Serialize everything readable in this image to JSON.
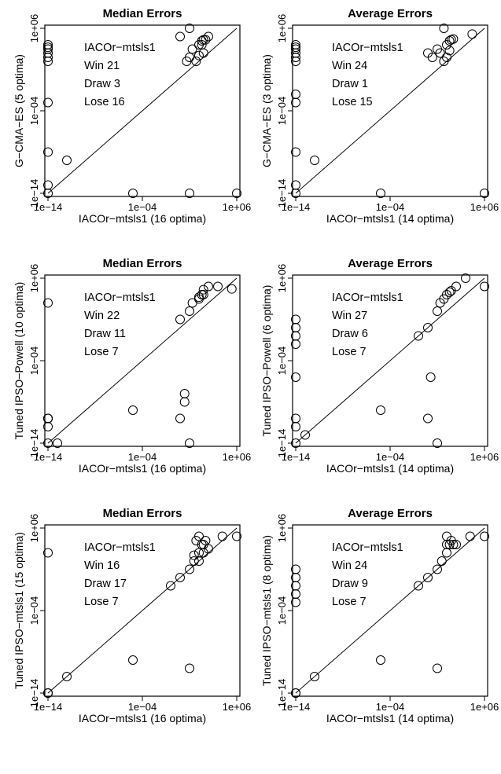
{
  "chart_data": [
    {
      "type": "scatter",
      "title": "Median Errors",
      "xlabel": "IACOr−mtsls1 (16 optima)",
      "ylabel": "G−CMA−ES (5 optima)",
      "scale": "log10",
      "xlim": [
        1e-14,
        1000000.0
      ],
      "ylim": [
        1e-14,
        1000000.0
      ],
      "ticks": [
        "1e−14",
        "1e−04",
        "1e+06"
      ],
      "annotation": [
        "IACOr−mtsls1",
        "Win 21",
        "Draw 3",
        "Lose 16"
      ],
      "diagonal": true,
      "points": [
        {
          "x": 1e-14,
          "y": 1e-14
        },
        {
          "x": 1e-14,
          "y": 1e-13
        },
        {
          "x": 1e-14,
          "y": 1e-09
        },
        {
          "x": 1e-14,
          "y": 0.001
        },
        {
          "x": 1e-14,
          "y": 100.0
        },
        {
          "x": 1e-14,
          "y": 300.0
        },
        {
          "x": 1e-14,
          "y": 1000.0
        },
        {
          "x": 1e-14,
          "y": 3000.0
        },
        {
          "x": 1e-14,
          "y": 10000.0
        },
        {
          "x": 1e-14,
          "y": 5000.0
        },
        {
          "x": 1e-12,
          "y": 1e-10
        },
        {
          "x": 1e-05,
          "y": 1e-14
        },
        {
          "x": 10.0,
          "y": 1e-14
        },
        {
          "x": 1000000.0,
          "y": 1e-14
        },
        {
          "x": 1.0,
          "y": 100000.0
        },
        {
          "x": 10.0,
          "y": 1000000.0
        },
        {
          "x": 5.0,
          "y": 100.0
        },
        {
          "x": 10.0,
          "y": 300.0
        },
        {
          "x": 50.0,
          "y": 100.0
        },
        {
          "x": 100.0,
          "y": 500.0
        },
        {
          "x": 20.0,
          "y": 3000.0
        },
        {
          "x": 100.0,
          "y": 10000.0
        },
        {
          "x": 200.0,
          "y": 30000.0
        },
        {
          "x": 300.0,
          "y": 40000.0
        },
        {
          "x": 200.0,
          "y": 10000.0
        },
        {
          "x": 500.0,
          "y": 40000.0
        },
        {
          "x": 1000.0,
          "y": 100000.0
        },
        {
          "x": 300.0,
          "y": 1000.0
        }
      ]
    },
    {
      "type": "scatter",
      "title": "Average Errors",
      "xlabel": "IACOr−mtsls1 (14 optima)",
      "ylabel": "G−CMA−ES (3 optima)",
      "scale": "log10",
      "xlim": [
        1e-14,
        1000000.0
      ],
      "ylim": [
        1e-14,
        1000000.0
      ],
      "ticks": [
        "1e−14",
        "1e−04",
        "1e+06"
      ],
      "annotation": [
        "IACOr−mtsls1",
        "Win 24",
        "Draw 1",
        "Lose 15"
      ],
      "diagonal": true,
      "points": [
        {
          "x": 1e-14,
          "y": 1e-14
        },
        {
          "x": 1e-14,
          "y": 1e-13
        },
        {
          "x": 1e-14,
          "y": 1e-09
        },
        {
          "x": 1e-14,
          "y": 0.001
        },
        {
          "x": 1e-14,
          "y": 0.01
        },
        {
          "x": 1e-14,
          "y": 100.0
        },
        {
          "x": 1e-14,
          "y": 300.0
        },
        {
          "x": 1e-14,
          "y": 1000.0
        },
        {
          "x": 1e-14,
          "y": 3000.0
        },
        {
          "x": 1e-14,
          "y": 10000.0
        },
        {
          "x": 1e-14,
          "y": 5000.0
        },
        {
          "x": 1e-12,
          "y": 1e-10
        },
        {
          "x": 1e-05,
          "y": 1e-14
        },
        {
          "x": 1000000.0,
          "y": 1e-14
        },
        {
          "x": 1.0,
          "y": 1000.0
        },
        {
          "x": 3.0,
          "y": 300.0
        },
        {
          "x": 10.0,
          "y": 3000.0
        },
        {
          "x": 20.0,
          "y": 1000.0
        },
        {
          "x": 50.0,
          "y": 100.0
        },
        {
          "x": 100.0,
          "y": 300.0
        },
        {
          "x": 100.0,
          "y": 10000.0
        },
        {
          "x": 200.0,
          "y": 30000.0
        },
        {
          "x": 300.0,
          "y": 40000.0
        },
        {
          "x": 50.0,
          "y": 1000000.0
        },
        {
          "x": 200.0,
          "y": 2000.0
        },
        {
          "x": 500.0,
          "y": 50000.0
        },
        {
          "x": 50000.0,
          "y": 200000.0
        }
      ]
    },
    {
      "type": "scatter",
      "title": "Median Errors",
      "xlabel": "IACOr−mtsls1 (16 optima)",
      "ylabel": "Tuned IPSO−Powell (10 optima)",
      "scale": "log10",
      "xlim": [
        1e-14,
        1000000.0
      ],
      "ylim": [
        1e-14,
        1000000.0
      ],
      "ticks": [
        "1e−14",
        "1e−04",
        "1e+06"
      ],
      "annotation": [
        "IACOr−mtsls1",
        "Win 22",
        "Draw 11",
        "Lose 7"
      ],
      "diagonal": true,
      "points": [
        {
          "x": 1e-14,
          "y": 1e-14
        },
        {
          "x": 1e-14,
          "y": 1e-11
        },
        {
          "x": 1e-14,
          "y": 1e-12
        },
        {
          "x": 1e-14,
          "y": 1e-11
        },
        {
          "x": 1e-14,
          "y": 1e-11
        },
        {
          "x": 1e-14,
          "y": 1000.0
        },
        {
          "x": 1e-13,
          "y": 1e-14
        },
        {
          "x": 1e-05,
          "y": 1e-10
        },
        {
          "x": 1.0,
          "y": 1e-11
        },
        {
          "x": 3.0,
          "y": 1e-08
        },
        {
          "x": 3.0,
          "y": 1e-09
        },
        {
          "x": 10.0,
          "y": 1e-14
        },
        {
          "x": 1.0,
          "y": 10.0
        },
        {
          "x": 10.0,
          "y": 100.0
        },
        {
          "x": 20.0,
          "y": 1000.0
        },
        {
          "x": 100.0,
          "y": 3000.0
        },
        {
          "x": 200.0,
          "y": 10000.0
        },
        {
          "x": 300.0,
          "y": 10000.0
        },
        {
          "x": 100.0,
          "y": 5000.0
        },
        {
          "x": 300.0,
          "y": 40000.0
        },
        {
          "x": 1000.0,
          "y": 100000.0
        },
        {
          "x": 300000.0,
          "y": 50000.0
        },
        {
          "x": 10000.0,
          "y": 100000.0
        }
      ]
    },
    {
      "type": "scatter",
      "title": "Average Errors",
      "xlabel": "IACOr−mtsls1 (14 optima)",
      "ylabel": "Tuned IPSO−Powell (6 optima)",
      "scale": "log10",
      "xlim": [
        1e-14,
        1000000.0
      ],
      "ylim": [
        1e-14,
        1000000.0
      ],
      "ticks": [
        "1e−14",
        "1e−04",
        "1e+06"
      ],
      "annotation": [
        "IACOr−mtsls1",
        "Win 27",
        "Draw 6",
        "Lose 7"
      ],
      "diagonal": true,
      "points": [
        {
          "x": 1e-14,
          "y": 1e-14
        },
        {
          "x": 1e-14,
          "y": 1e-12
        },
        {
          "x": 1e-14,
          "y": 1e-11
        },
        {
          "x": 1e-14,
          "y": 1e-06
        },
        {
          "x": 1e-14,
          "y": 0.01
        },
        {
          "x": 1e-14,
          "y": 1.0
        },
        {
          "x": 1e-14,
          "y": 0.1
        },
        {
          "x": 1e-14,
          "y": 10.0
        },
        {
          "x": 1e-13,
          "y": 1e-13
        },
        {
          "x": 1e-05,
          "y": 1e-10
        },
        {
          "x": 1.0,
          "y": 1e-11
        },
        {
          "x": 2.0,
          "y": 1e-06
        },
        {
          "x": 10.0,
          "y": 1e-14
        },
        {
          "x": 0.1,
          "y": 0.1
        },
        {
          "x": 1.0,
          "y": 1.0
        },
        {
          "x": 10.0,
          "y": 100.0
        },
        {
          "x": 20.0,
          "y": 1000.0
        },
        {
          "x": 50.0,
          "y": 3000.0
        },
        {
          "x": 100.0,
          "y": 10000.0
        },
        {
          "x": 200.0,
          "y": 20000.0
        },
        {
          "x": 300.0,
          "y": 30000.0
        },
        {
          "x": 1000.0,
          "y": 100000.0
        },
        {
          "x": 1000000.0,
          "y": 100000.0
        },
        {
          "x": 10000.0,
          "y": 1000000.0
        }
      ]
    },
    {
      "type": "scatter",
      "title": "Median Errors",
      "xlabel": "IACOr−mtsls1 (16 optima)",
      "ylabel": "Tuned IPSO−mtsls1 (15 optima)",
      "scale": "log10",
      "xlim": [
        1e-14,
        1000000.0
      ],
      "ylim": [
        1e-14,
        1000000.0
      ],
      "ticks": [
        "1e−14",
        "1e−04",
        "1e+06"
      ],
      "annotation": [
        "IACOr−mtsls1",
        "Win 16",
        "Draw 17",
        "Lose 7"
      ],
      "diagonal": true,
      "points": [
        {
          "x": 1e-14,
          "y": 1e-14
        },
        {
          "x": 1e-14,
          "y": 1e-14
        },
        {
          "x": 1e-14,
          "y": 1e-14
        },
        {
          "x": 1e-14,
          "y": 1000.0
        },
        {
          "x": 1e-12,
          "y": 1e-12
        },
        {
          "x": 1e-05,
          "y": 1e-10
        },
        {
          "x": 10.0,
          "y": 1e-11
        },
        {
          "x": 0.1,
          "y": 0.1
        },
        {
          "x": 1.0,
          "y": 1.0
        },
        {
          "x": 10.0,
          "y": 10.0
        },
        {
          "x": 30.0,
          "y": 100.0
        },
        {
          "x": 100.0,
          "y": 100.0
        },
        {
          "x": 100.0,
          "y": 1000.0
        },
        {
          "x": 200.0,
          "y": 10000.0
        },
        {
          "x": 300.0,
          "y": 10000.0
        },
        {
          "x": 300.0,
          "y": 1000.0
        },
        {
          "x": 500.0,
          "y": 30000.0
        },
        {
          "x": 1000.0,
          "y": 3000.0
        },
        {
          "x": 100.0,
          "y": 100000.0
        },
        {
          "x": 30000.0,
          "y": 100000.0
        },
        {
          "x": 1000000.0,
          "y": 100000.0
        },
        {
          "x": 50.0,
          "y": 30000.0
        },
        {
          "x": 30.0,
          "y": 500.0
        }
      ]
    },
    {
      "type": "scatter",
      "title": "Average Errors",
      "xlabel": "IACOr−mtsls1 (14 optima)",
      "ylabel": "Tuned IPSO−mtsls1 (8 optima)",
      "scale": "log10",
      "xlim": [
        1e-14,
        1000000.0
      ],
      "ylim": [
        1e-14,
        1000000.0
      ],
      "ticks": [
        "1e−14",
        "1e−04",
        "1e+06"
      ],
      "annotation": [
        "IACOr−mtsls1",
        "Win 24",
        "Draw 9",
        "Lose 7"
      ],
      "diagonal": true,
      "points": [
        {
          "x": 1e-14,
          "y": 1e-14
        },
        {
          "x": 1e-14,
          "y": 1e-14
        },
        {
          "x": 1e-14,
          "y": 0.001
        },
        {
          "x": 1e-14,
          "y": 0.01
        },
        {
          "x": 1e-14,
          "y": 0.1
        },
        {
          "x": 1e-14,
          "y": 1.0
        },
        {
          "x": 1e-14,
          "y": 10.0
        },
        {
          "x": 1e-12,
          "y": 1e-12
        },
        {
          "x": 1e-05,
          "y": 1e-10
        },
        {
          "x": 10.0,
          "y": 1e-11
        },
        {
          "x": 0.1,
          "y": 0.1
        },
        {
          "x": 1.0,
          "y": 1.0
        },
        {
          "x": 10.0,
          "y": 10.0
        },
        {
          "x": 30.0,
          "y": 100.0
        },
        {
          "x": 100.0,
          "y": 1000.0
        },
        {
          "x": 200.0,
          "y": 10000.0
        },
        {
          "x": 300.0,
          "y": 30000.0
        },
        {
          "x": 500.0,
          "y": 10000.0
        },
        {
          "x": 1000.0,
          "y": 10000.0
        },
        {
          "x": 100.0,
          "y": 100000.0
        },
        {
          "x": 30000.0,
          "y": 100000.0
        },
        {
          "x": 1000000.0,
          "y": 100000.0
        },
        {
          "x": 100.0,
          "y": 10000.0
        }
      ]
    }
  ]
}
